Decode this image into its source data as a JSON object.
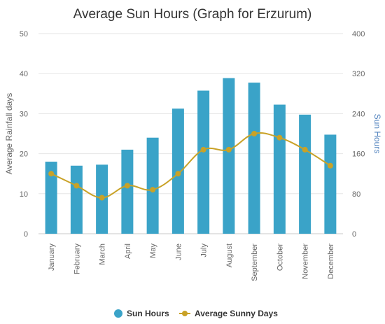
{
  "chart_data": {
    "type": "bar",
    "title": "Average Sun Hours (Graph for Erzurum)",
    "categories": [
      "January",
      "February",
      "March",
      "April",
      "May",
      "June",
      "July",
      "August",
      "September",
      "October",
      "November",
      "December"
    ],
    "series": [
      {
        "name": "Sun Hours",
        "type": "bar",
        "axis": "right",
        "color": "#3aa3c8",
        "values": [
          144,
          136,
          138,
          168,
          192,
          250,
          286,
          311,
          302,
          258,
          238,
          198
        ]
      },
      {
        "name": "Average Sunny Days",
        "type": "line",
        "axis": "left",
        "color": "#c9a227",
        "values": [
          15,
          12,
          9,
          12,
          11,
          15,
          21,
          21,
          25,
          24,
          21,
          17
        ]
      }
    ],
    "y_left": {
      "label": "Average Rainfall days",
      "min": 0,
      "max": 50,
      "ticks": [
        0,
        10,
        20,
        30,
        40,
        50
      ]
    },
    "y_right": {
      "label": "Sun Hours",
      "min": 0,
      "max": 400,
      "ticks": [
        0,
        80,
        160,
        240,
        320,
        400
      ],
      "label_color": "#4f81bd"
    },
    "grid": true,
    "legend_position": "bottom-center"
  }
}
